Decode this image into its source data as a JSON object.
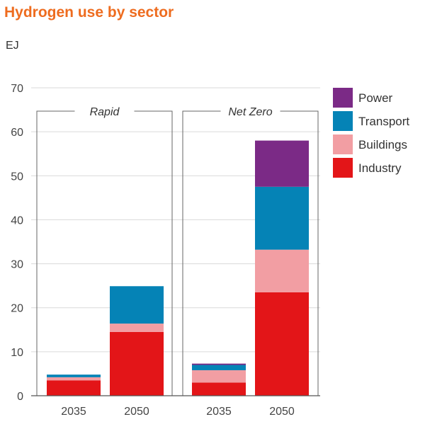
{
  "title": "Hydrogen use by sector",
  "unit_label": "EJ",
  "chart_data": {
    "type": "bar",
    "stacked": true,
    "title": "Hydrogen use by sector",
    "ylabel": "EJ",
    "ylim": [
      0,
      70
    ],
    "yticks": [
      0,
      10,
      20,
      30,
      40,
      50,
      60,
      70
    ],
    "grid": true,
    "legend_position": "right",
    "groups": [
      {
        "label": "Rapid",
        "categories": [
          "2035",
          "2050"
        ]
      },
      {
        "label": "Net Zero",
        "categories": [
          "2035",
          "2050"
        ]
      }
    ],
    "categories": [
      "2035",
      "2050",
      "2035",
      "2050"
    ],
    "series": [
      {
        "name": "Industry",
        "color": "#e31518",
        "values": [
          3.5,
          14.5,
          3.0,
          23.5
        ]
      },
      {
        "name": "Buildings",
        "color": "#f29ea3",
        "values": [
          0.7,
          1.9,
          2.8,
          9.7
        ]
      },
      {
        "name": "Transport",
        "color": "#0583b6",
        "values": [
          0.6,
          8.5,
          1.2,
          14.3
        ]
      },
      {
        "name": "Power",
        "color": "#7b2a86",
        "values": [
          0.0,
          0.0,
          0.3,
          10.5
        ]
      }
    ],
    "legend_order": [
      "Power",
      "Transport",
      "Buildings",
      "Industry"
    ]
  }
}
